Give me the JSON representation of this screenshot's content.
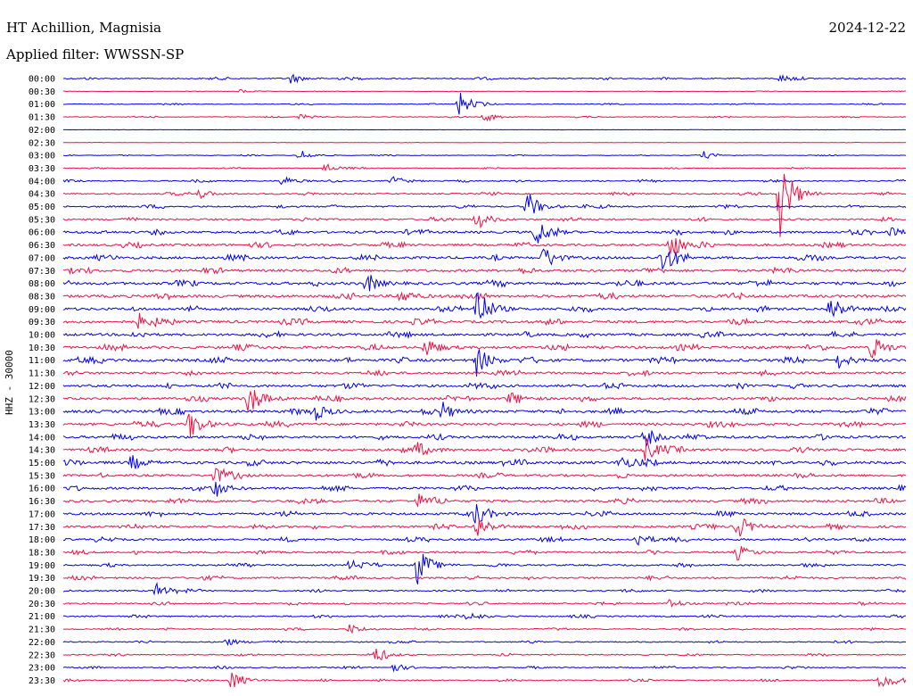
{
  "header": {
    "station": "HT Achillion, Magnisia",
    "date": "2024-12-22",
    "filter": "Applied filter: WWSSN-SP"
  },
  "colors": {
    "trace_a": "#0000ee",
    "trace_b": "#ee1144",
    "text": "#000000"
  },
  "chart_data": {
    "type": "line",
    "ylabel": "HHZ - 30000",
    "grid": false,
    "row_labels": [
      "00:00",
      "00:30",
      "01:00",
      "01:30",
      "02:00",
      "02:30",
      "03:00",
      "03:30",
      "04:00",
      "04:30",
      "05:00",
      "05:30",
      "06:00",
      "06:30",
      "07:00",
      "07:30",
      "08:00",
      "08:30",
      "09:00",
      "09:30",
      "10:00",
      "10:30",
      "11:00",
      "11:30",
      "12:00",
      "12:30",
      "13:00",
      "13:30",
      "14:00",
      "14:30",
      "15:00",
      "15:30",
      "16:00",
      "16:30",
      "17:00",
      "17:30",
      "18:00",
      "18:30",
      "19:00",
      "19:30",
      "20:00",
      "20:30",
      "21:00",
      "21:30",
      "22:00",
      "22:30",
      "23:00",
      "23:30"
    ],
    "series_colors": [
      "trace_a",
      "trace_b"
    ],
    "activity": [
      1,
      0.3,
      0.6,
      0.6,
      0.2,
      0.2,
      0.5,
      0.6,
      1,
      1.2,
      1.4,
      1.5,
      2,
      2,
      2.2,
      2.2,
      2.4,
      2.4,
      2.2,
      2.3,
      2.2,
      2.3,
      2.4,
      2,
      2.2,
      2.2,
      2.3,
      2.2,
      2.2,
      2.2,
      2.4,
      2,
      2,
      2,
      2,
      2,
      1.8,
      1.6,
      1.4,
      1.6,
      1.2,
      1.2,
      1.2,
      1,
      1,
      1,
      1,
      1
    ],
    "events": [
      {
        "row": 0,
        "x": 0.27,
        "amp": 2
      },
      {
        "row": 0,
        "x": 0.85,
        "amp": 1.2
      },
      {
        "row": 1,
        "x": 0.21,
        "amp": 0.8
      },
      {
        "row": 2,
        "x": 0.47,
        "amp": 5
      },
      {
        "row": 3,
        "x": 0.5,
        "amp": 2
      },
      {
        "row": 3,
        "x": 0.28,
        "amp": 1.2
      },
      {
        "row": 6,
        "x": 0.28,
        "amp": 2.5
      },
      {
        "row": 6,
        "x": 0.76,
        "amp": 1.5
      },
      {
        "row": 7,
        "x": 0.31,
        "amp": 2
      },
      {
        "row": 8,
        "x": 0.26,
        "amp": 2
      },
      {
        "row": 8,
        "x": 0.39,
        "amp": 2
      },
      {
        "row": 9,
        "x": 0.85,
        "amp": 18
      },
      {
        "row": 9,
        "x": 0.16,
        "amp": 2
      },
      {
        "row": 10,
        "x": 0.55,
        "amp": 6
      },
      {
        "row": 11,
        "x": 0.49,
        "amp": 4
      },
      {
        "row": 12,
        "x": 0.56,
        "amp": 5
      },
      {
        "row": 12,
        "x": 0.98,
        "amp": 2
      },
      {
        "row": 13,
        "x": 0.72,
        "amp": 6
      },
      {
        "row": 14,
        "x": 0.57,
        "amp": 4
      },
      {
        "row": 14,
        "x": 0.71,
        "amp": 6
      },
      {
        "row": 16,
        "x": 0.36,
        "amp": 3
      },
      {
        "row": 17,
        "x": 0.4,
        "amp": 3
      },
      {
        "row": 18,
        "x": 0.49,
        "amp": 10
      },
      {
        "row": 18,
        "x": 0.91,
        "amp": 6
      },
      {
        "row": 19,
        "x": 0.09,
        "amp": 3
      },
      {
        "row": 21,
        "x": 0.43,
        "amp": 4
      },
      {
        "row": 21,
        "x": 0.96,
        "amp": 5
      },
      {
        "row": 22,
        "x": 0.49,
        "amp": 6
      },
      {
        "row": 22,
        "x": 0.92,
        "amp": 3
      },
      {
        "row": 25,
        "x": 0.22,
        "amp": 7
      },
      {
        "row": 25,
        "x": 0.53,
        "amp": 3
      },
      {
        "row": 26,
        "x": 0.3,
        "amp": 3
      },
      {
        "row": 26,
        "x": 0.45,
        "amp": 3
      },
      {
        "row": 27,
        "x": 0.15,
        "amp": 6
      },
      {
        "row": 28,
        "x": 0.69,
        "amp": 4
      },
      {
        "row": 29,
        "x": 0.69,
        "amp": 5
      },
      {
        "row": 29,
        "x": 0.42,
        "amp": 3
      },
      {
        "row": 30,
        "x": 0.08,
        "amp": 3
      },
      {
        "row": 30,
        "x": 0.66,
        "amp": 3
      },
      {
        "row": 31,
        "x": 0.18,
        "amp": 3
      },
      {
        "row": 32,
        "x": 0.18,
        "amp": 3
      },
      {
        "row": 33,
        "x": 0.42,
        "amp": 3
      },
      {
        "row": 34,
        "x": 0.49,
        "amp": 5
      },
      {
        "row": 35,
        "x": 0.49,
        "amp": 5
      },
      {
        "row": 35,
        "x": 0.8,
        "amp": 5
      },
      {
        "row": 36,
        "x": 0.68,
        "amp": 3
      },
      {
        "row": 37,
        "x": 0.8,
        "amp": 3
      },
      {
        "row": 38,
        "x": 0.42,
        "amp": 8
      },
      {
        "row": 38,
        "x": 0.34,
        "amp": 2
      },
      {
        "row": 40,
        "x": 0.11,
        "amp": 3
      },
      {
        "row": 41,
        "x": 0.72,
        "amp": 2
      },
      {
        "row": 42,
        "x": 0.48,
        "amp": 2
      },
      {
        "row": 43,
        "x": 0.34,
        "amp": 2
      },
      {
        "row": 44,
        "x": 0.19,
        "amp": 2
      },
      {
        "row": 45,
        "x": 0.37,
        "amp": 3
      },
      {
        "row": 46,
        "x": 0.39,
        "amp": 2
      },
      {
        "row": 47,
        "x": 0.2,
        "amp": 4
      },
      {
        "row": 47,
        "x": 0.97,
        "amp": 4
      }
    ]
  }
}
